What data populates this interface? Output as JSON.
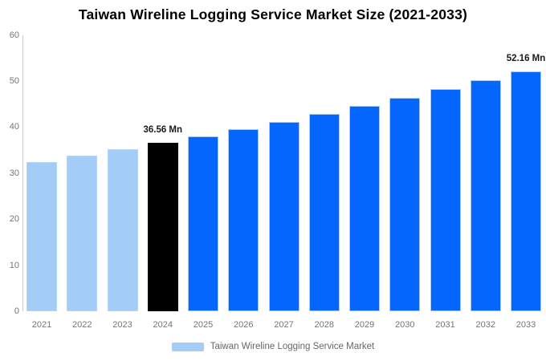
{
  "title": "Taiwan Wireline Logging Service Market Size (2021-2033)",
  "legend": {
    "label": "Taiwan Wireline Logging Service Market",
    "swatch_color": "#a3ccf7"
  },
  "colors": {
    "axis_line": "#cccccc",
    "tick_text": "#757575",
    "data_label_text": "#1a1a1a",
    "segment_styles": {
      "historical": {
        "fill": "#a3ccf7",
        "stroke": "#b6d6f9"
      },
      "base_year": {
        "fill": "#000000",
        "stroke": "#000000"
      },
      "forecast": {
        "fill": "#0566fd",
        "stroke": "#a9ccf4"
      }
    }
  },
  "chart_data": {
    "type": "bar",
    "title": "Taiwan Wireline Logging Service Market Size (2021-2033)",
    "xlabel": "",
    "ylabel": "",
    "unit": "Mn",
    "categories": [
      "2021",
      "2022",
      "2023",
      "2024",
      "2025",
      "2026",
      "2027",
      "2028",
      "2029",
      "2030",
      "2031",
      "2032",
      "2033"
    ],
    "values": [
      32.47,
      33.78,
      35.14,
      36.56,
      38.03,
      39.57,
      41.16,
      42.82,
      44.55,
      46.34,
      48.21,
      50.15,
      52.16
    ],
    "segments": [
      "historical",
      "historical",
      "historical",
      "base_year",
      "forecast",
      "forecast",
      "forecast",
      "forecast",
      "forecast",
      "forecast",
      "forecast",
      "forecast",
      "forecast"
    ],
    "data_labels": [
      {
        "category": "2024",
        "text": "36.56 Mn"
      },
      {
        "category": "2033",
        "text": "52.16 Mn"
      }
    ],
    "ylim": [
      0,
      60
    ],
    "yticks": [
      0,
      10,
      20,
      30,
      40,
      50,
      60
    ],
    "grid": false,
    "legend_position": "bottom-center",
    "legend_entries": [
      "Taiwan Wireline Logging Service Market"
    ]
  }
}
